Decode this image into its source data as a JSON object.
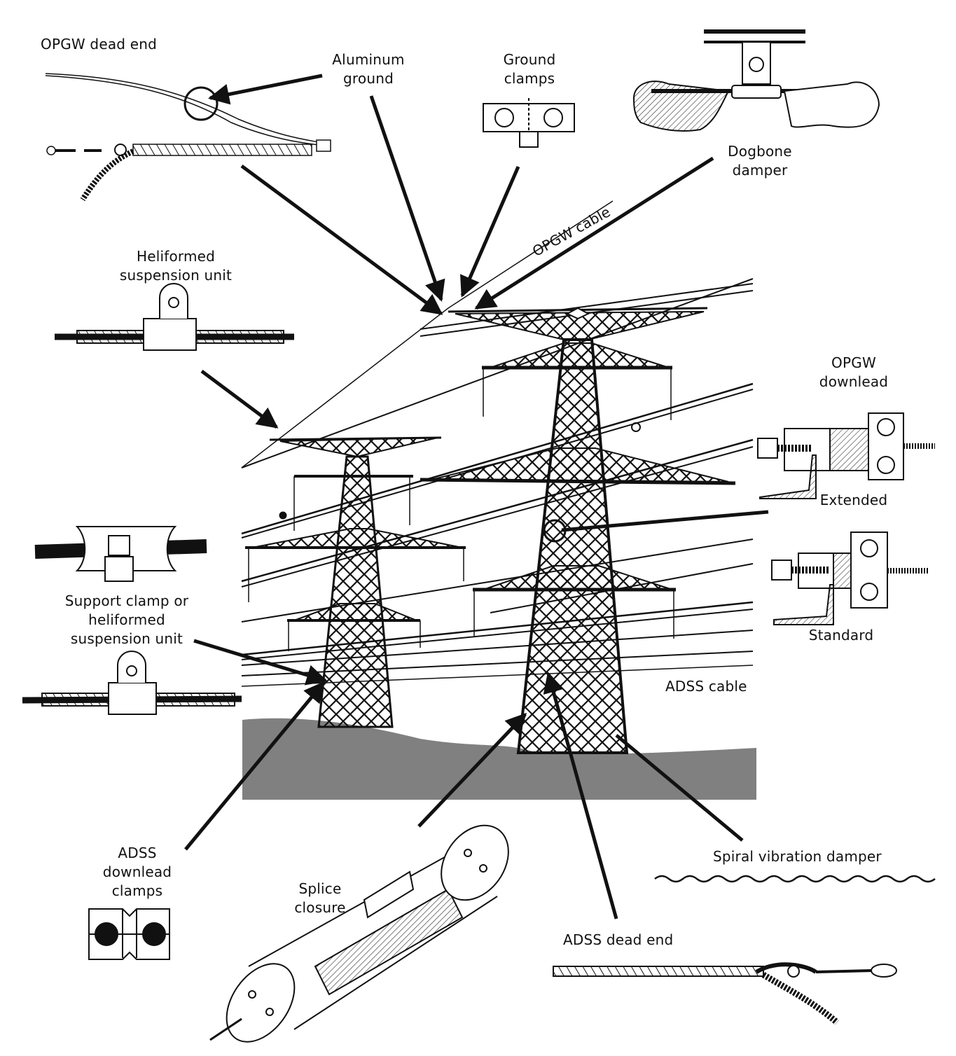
{
  "labels": {
    "opgw_dead_end": "OPGW dead end",
    "aluminum_ground": "Aluminum\nground",
    "ground_clamps": "Ground\nclamps",
    "dogbone_damper": "Dogbone\ndamper",
    "opgw_cable": "OPGW cable",
    "heliformed_suspension_unit": "Heliformed\nsuspension unit",
    "opgw_downlead": "OPGW\ndownlead",
    "extended": "Extended",
    "standard": "Standard",
    "support_clamp": "Support clamp or\nheliformed\nsuspension unit",
    "adss_cable": "ADSS cable",
    "adss_downlead_clamps": "ADSS\ndownlead\nclamps",
    "splice_closure": "Splice\nclosure",
    "spiral_vibration_damper": "Spiral vibration damper",
    "adss_dead_end": "ADSS dead end"
  },
  "colors": {
    "ink": "#111111",
    "ground": "#808080",
    "paper": "#ffffff",
    "hatch": "#cccccc"
  }
}
